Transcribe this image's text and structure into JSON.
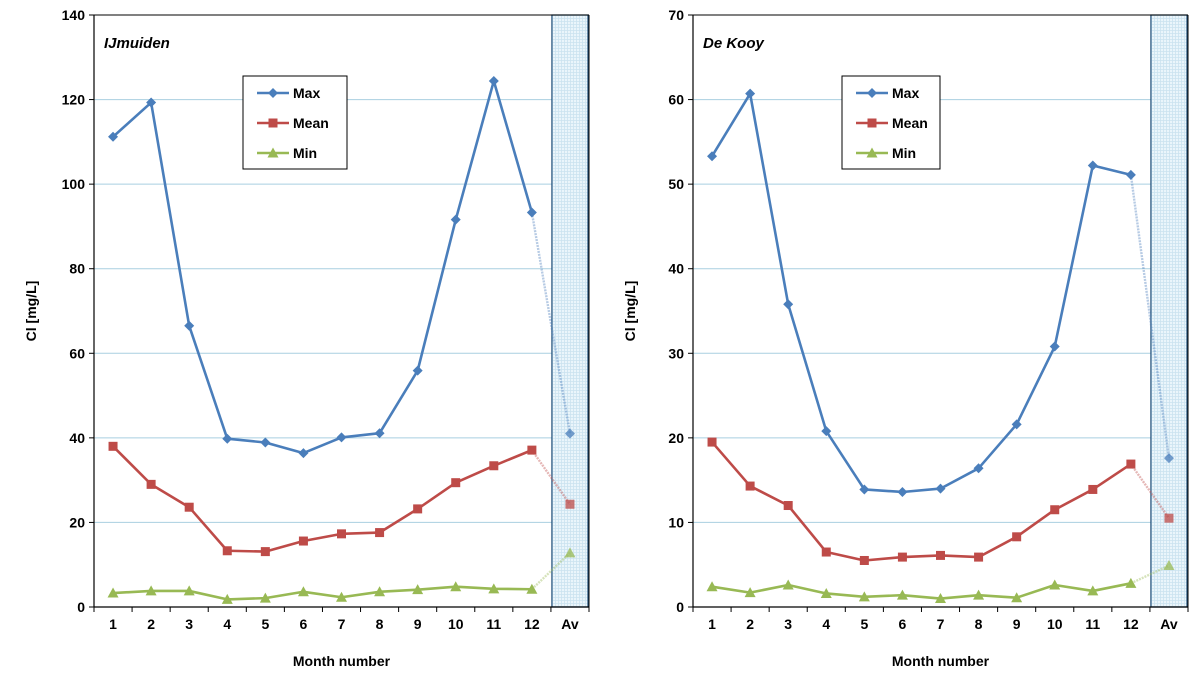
{
  "chart_data": [
    {
      "type": "line",
      "title": "IJmuiden",
      "xlabel": "Month number",
      "ylabel": "Cl   [mg/L]",
      "categories": [
        "1",
        "2",
        "3",
        "4",
        "5",
        "6",
        "7",
        "8",
        "9",
        "10",
        "11",
        "12",
        "Av"
      ],
      "ylim": [
        0,
        140
      ],
      "yticks": [
        0,
        20,
        40,
        60,
        80,
        100,
        120,
        140
      ],
      "grid": true,
      "legend": "top-center",
      "highlight_category": "Av",
      "series": [
        {
          "name": "Max",
          "color": "#4a7ebb",
          "marker": "diamond",
          "values": [
            111.2,
            119.3,
            66.5,
            39.8,
            38.9,
            36.4,
            40.1,
            41.1,
            55.9,
            91.6,
            124.4,
            93.3,
            41.0
          ]
        },
        {
          "name": "Mean",
          "color": "#be4b48",
          "marker": "square",
          "values": [
            38.0,
            29.0,
            23.6,
            13.3,
            13.1,
            15.6,
            17.3,
            17.6,
            23.2,
            29.4,
            33.4,
            37.1,
            24.3
          ]
        },
        {
          "name": "Min",
          "color": "#98b954",
          "marker": "triangle",
          "values": [
            3.3,
            3.8,
            3.8,
            1.8,
            2.1,
            3.6,
            2.3,
            3.6,
            4.1,
            4.8,
            4.3,
            4.2,
            12.8
          ]
        }
      ]
    },
    {
      "type": "line",
      "title": "De Kooy",
      "xlabel": "Month number",
      "ylabel": "Cl   [mg/L]",
      "categories": [
        "1",
        "2",
        "3",
        "4",
        "5",
        "6",
        "7",
        "8",
        "9",
        "10",
        "11",
        "12",
        "Av"
      ],
      "ylim": [
        0,
        70
      ],
      "yticks": [
        0,
        10,
        20,
        30,
        40,
        50,
        60,
        70
      ],
      "grid": true,
      "legend": "top-center",
      "highlight_category": "Av",
      "series": [
        {
          "name": "Max",
          "color": "#4a7ebb",
          "marker": "diamond",
          "values": [
            53.3,
            60.7,
            35.8,
            20.8,
            13.9,
            13.6,
            14.0,
            16.4,
            21.6,
            30.8,
            52.2,
            51.1,
            17.6
          ]
        },
        {
          "name": "Mean",
          "color": "#be4b48",
          "marker": "square",
          "values": [
            19.5,
            14.3,
            12.0,
            6.5,
            5.5,
            5.9,
            6.1,
            5.9,
            8.3,
            11.5,
            13.9,
            16.9,
            10.5
          ]
        },
        {
          "name": "Min",
          "color": "#98b954",
          "marker": "triangle",
          "values": [
            2.4,
            1.7,
            2.6,
            1.6,
            1.2,
            1.4,
            1.0,
            1.4,
            1.1,
            2.6,
            1.9,
            2.8,
            4.9
          ]
        }
      ]
    }
  ]
}
